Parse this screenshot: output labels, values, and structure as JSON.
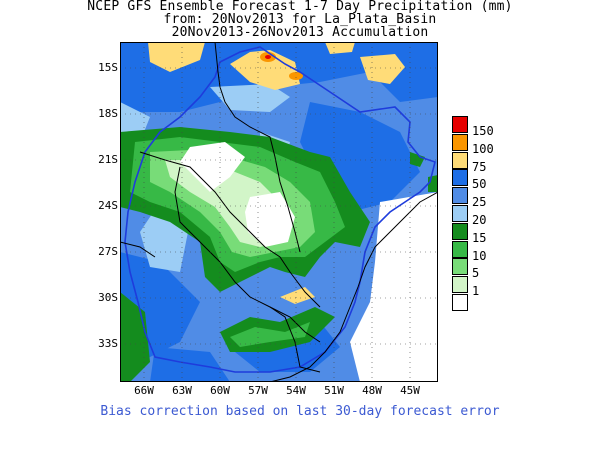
{
  "title": {
    "line1": "NCEP GFS Ensemble Forecast 1-7 Day Precipitation (mm)",
    "line2": "from: 20Nov2013  for La_Plata_Basin",
    "line3": "20Nov2013-26Nov2013 Accumulation"
  },
  "lat_ticks": [
    "15S",
    "18S",
    "21S",
    "24S",
    "27S",
    "30S",
    "33S"
  ],
  "lon_ticks": [
    "66W",
    "63W",
    "60W",
    "57W",
    "54W",
    "51W",
    "48W",
    "45W"
  ],
  "legend": [
    {
      "label": "150",
      "color": "#e60000"
    },
    {
      "label": "100",
      "color": "#fa9600"
    },
    {
      "label": "75",
      "color": "#ffdc78"
    },
    {
      "label": "50",
      "color": "#1e6ee6"
    },
    {
      "label": "25",
      "color": "#508ce6"
    },
    {
      "label": "20",
      "color": "#9ccdf5"
    },
    {
      "label": "15",
      "color": "#148c1e"
    },
    {
      "label": "10",
      "color": "#37b946"
    },
    {
      "label": "5",
      "color": "#78dc78"
    },
    {
      "label": "1",
      "color": "#d2f5c8"
    },
    {
      "label": "",
      "color": "#ffffff"
    }
  ],
  "footer": "Bias correction based on last 30-day forecast error"
}
